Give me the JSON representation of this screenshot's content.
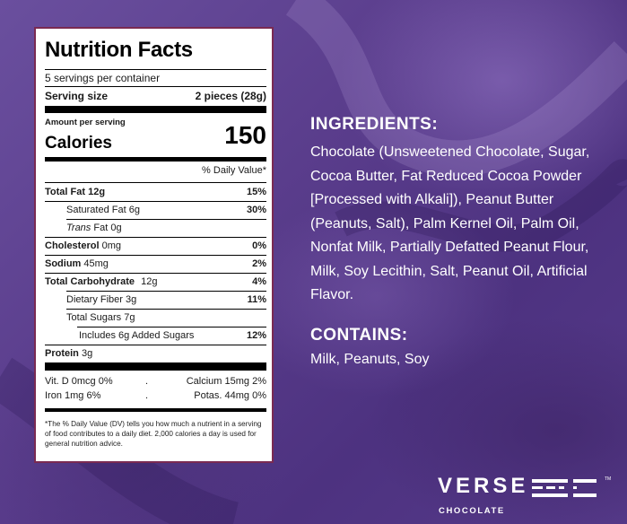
{
  "nutrition": {
    "title": "Nutrition Facts",
    "servings_per_container": "5 servings per container",
    "serving_size_label": "Serving size",
    "serving_size_value": "2 pieces (28g)",
    "amount_per_serving": "Amount per serving",
    "calories_label": "Calories",
    "calories_value": "150",
    "daily_value_header": "% Daily Value*",
    "rows": [
      {
        "label": "Total Fat",
        "amount": "12g",
        "dv": "15%"
      },
      {
        "label": "Saturated Fat",
        "amount": "6g",
        "dv": "30%"
      },
      {
        "label_italic": "Trans",
        "label": "Fat",
        "amount": "0g",
        "dv": ""
      },
      {
        "label": "Cholesterol",
        "amount": "0mg",
        "dv": "0%"
      },
      {
        "label": "Sodium",
        "amount": "45mg",
        "dv": "2%"
      },
      {
        "label": "Total Carbohydrate",
        "amount": "12g",
        "dv": "4%"
      },
      {
        "label": "Dietary Fiber",
        "amount": "3g",
        "dv": "11%"
      },
      {
        "label": "Total Sugars",
        "amount": "7g",
        "dv": ""
      },
      {
        "label": "Includes 6g Added Sugars",
        "amount": "",
        "dv": "12%"
      },
      {
        "label": "Protein",
        "amount": "3g",
        "dv": ""
      }
    ],
    "vitamins": {
      "vit_d": "Vit. D 0mcg 0%",
      "calcium": "Calcium 15mg 2%",
      "iron": "Iron 1mg 6%",
      "potassium": "Potas. 44mg 0%",
      "separator": "."
    },
    "footnote": "*The % Daily Value (DV) tells you how much a nutrient in a serving of food contributes to a daily diet. 2,000 calories a day is used for general nutrition advice."
  },
  "ingredients": {
    "title": "INGREDIENTS:",
    "text": "Chocolate (Unsweetened Chocolate, Sugar, Cocoa Butter, Fat Reduced Cocoa Powder [Processed with Alkali]), Peanut Butter (Peanuts, Salt), Palm Kernel Oil, Palm Oil, Nonfat Milk, Partially Defatted Peanut Flour, Milk, Soy Lecithin, Salt, Peanut Oil, Artificial Flavor."
  },
  "contains": {
    "title": "CONTAINS:",
    "text": "Milk, Peanuts, Soy"
  },
  "logo": {
    "brand": "VERSE",
    "subtitle": "CHOCOLATE",
    "mark": "TM"
  },
  "colors": {
    "background": "#5b3f8f",
    "label_border": "#7a2a52",
    "text_light": "#ffffff"
  }
}
